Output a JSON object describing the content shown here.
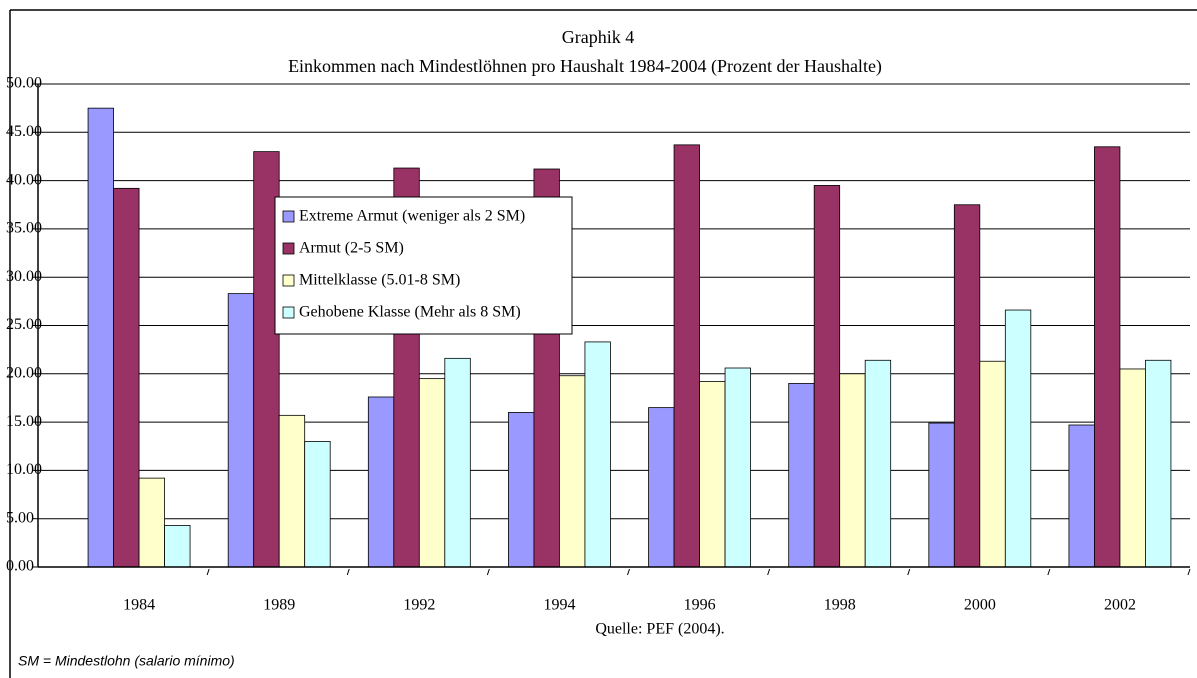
{
  "chart_data": {
    "type": "bar",
    "title": "Graphik 4",
    "subtitle": "Einkommen nach Mindestlöhnen pro Haushalt 1984-2004 (Prozent der Haushalte)",
    "source": "Quelle: PEF (2004).",
    "footnote": "SM = Mindestlohn (salario mínimo)",
    "categories": [
      "1984",
      "1989",
      "1992",
      "1994",
      "1996",
      "1998",
      "2000",
      "2002"
    ],
    "series": [
      {
        "name": "Extreme Armut (weniger als 2 SM)",
        "color": "#9999ff",
        "values": [
          47.5,
          28.3,
          17.6,
          16.0,
          16.5,
          19.0,
          14.9,
          14.7
        ]
      },
      {
        "name": "Armut (2-5 SM)",
        "color": "#993366",
        "values": [
          39.2,
          43.0,
          41.3,
          41.2,
          43.7,
          39.5,
          37.5,
          43.5
        ]
      },
      {
        "name": "Mittelklasse (5.01-8 SM)",
        "color": "#ffffcc",
        "values": [
          9.2,
          15.7,
          19.5,
          19.8,
          19.2,
          20.0,
          21.3,
          20.5
        ]
      },
      {
        "name": "Gehobene Klasse (Mehr als 8 SM)",
        "color": "#ccffff",
        "values": [
          4.3,
          13.0,
          21.6,
          23.3,
          20.6,
          21.4,
          26.6,
          21.4
        ]
      }
    ],
    "ylim": [
      0,
      50
    ],
    "yticks": [
      {
        "value": 0,
        "label": "0.00"
      },
      {
        "value": 5,
        "label": "5.00"
      },
      {
        "value": 10,
        "label": "10.00"
      },
      {
        "value": 15,
        "label": "15.00"
      },
      {
        "value": 20,
        "label": "20.00"
      },
      {
        "value": 25,
        "label": "25.00"
      },
      {
        "value": 30,
        "label": "30.00"
      },
      {
        "value": 35,
        "label": "35.00"
      },
      {
        "value": 40,
        "label": "40.00"
      },
      {
        "value": 45,
        "label": "45.00"
      },
      {
        "value": 50,
        "label": "50.00"
      }
    ],
    "grid": true
  }
}
